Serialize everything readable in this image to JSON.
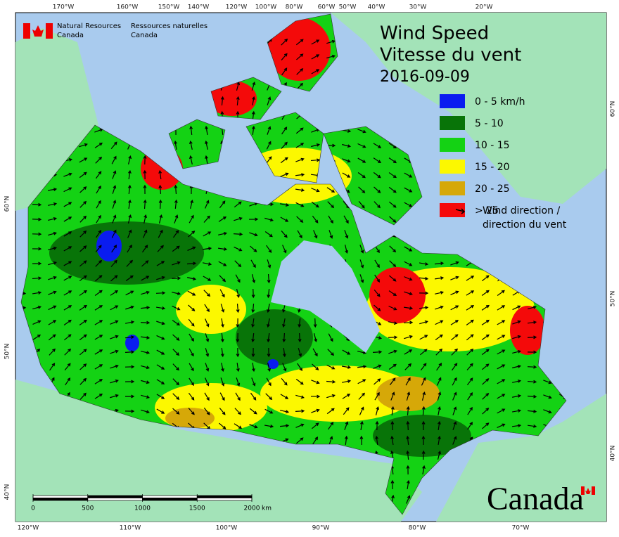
{
  "agency": {
    "en": [
      "Natural Resources",
      "Canada"
    ],
    "fr": [
      "Ressources naturelles",
      "Canada"
    ]
  },
  "title": {
    "en": "Wind Speed",
    "fr": "Vitesse du vent",
    "date": "2016-09-09"
  },
  "legend": {
    "items": [
      {
        "label": "0 - 5 km/h",
        "color": "#0a1cf0"
      },
      {
        "label": "5 - 10",
        "color": "#087408"
      },
      {
        "label": "10 - 15",
        "color": "#14d214"
      },
      {
        "label": "15 - 20",
        "color": "#fcf800"
      },
      {
        "label": "20 - 25",
        "color": "#d6a808"
      },
      {
        "label": "> 25",
        "color": "#f40a0a"
      }
    ],
    "arrow_label": [
      "Wind direction /",
      "direction du vent"
    ]
  },
  "graticule": {
    "top": [
      "170°W",
      "160°W",
      "150°W",
      "140°W",
      "120°W",
      "100°W",
      "80°W",
      "60°W",
      "50°W",
      "40°W",
      "30°W",
      "20°W"
    ],
    "bottom": [
      "120°W",
      "110°W",
      "100°W",
      "90°W",
      "80°W",
      "70°W"
    ],
    "left": [
      "60°N",
      "50°N",
      "40°N"
    ],
    "right": [
      "60°N",
      "50°N",
      "40°N"
    ]
  },
  "scale_bar": {
    "ticks": [
      0,
      500,
      1000,
      1500,
      2000
    ],
    "unit": "km"
  },
  "wordmark": "Canada"
}
